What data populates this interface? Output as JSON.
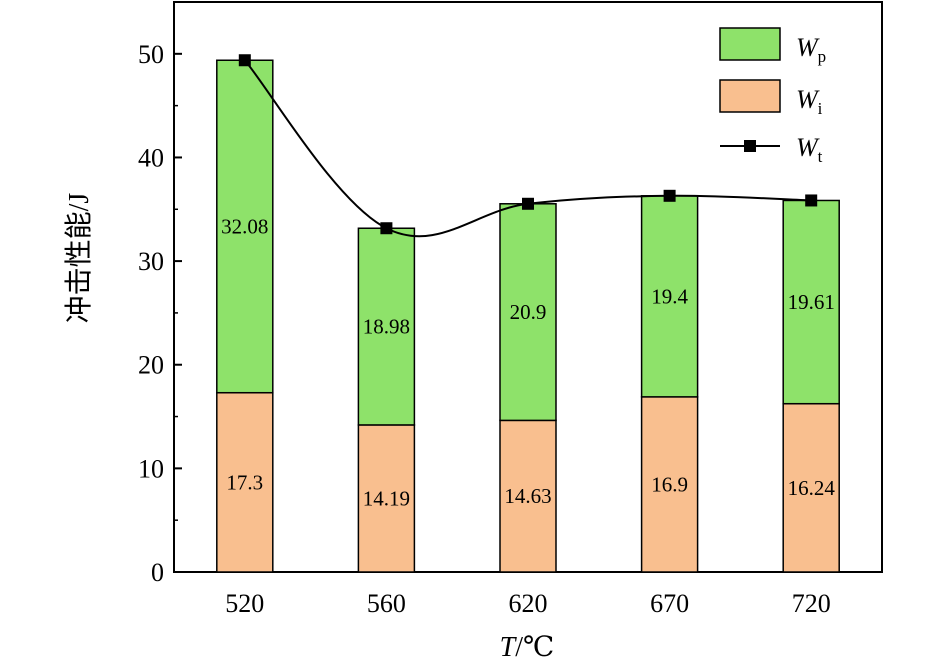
{
  "chart_data": {
    "type": "bar",
    "stacked": true,
    "categories": [
      "520",
      "560",
      "620",
      "670",
      "720"
    ],
    "series": [
      {
        "name": "Wi",
        "legend_main": "W",
        "legend_sub": "i",
        "color": "#f9bf8f",
        "values": [
          17.3,
          14.19,
          14.63,
          16.9,
          16.24
        ]
      },
      {
        "name": "Wp",
        "legend_main": "W",
        "legend_sub": "p",
        "color": "#8ee26a",
        "values": [
          32.08,
          18.98,
          20.9,
          19.4,
          19.61
        ]
      }
    ],
    "line_series": {
      "name": "Wt",
      "legend_main": "W",
      "legend_sub": "t",
      "color": "#000000",
      "values": [
        49.38,
        33.17,
        35.53,
        36.3,
        35.85
      ]
    },
    "xlabel_main": "T",
    "xlabel_unit": "/℃",
    "ylabel": "冲击性能/J",
    "ylim": [
      0,
      55
    ],
    "yticks": [
      0,
      10,
      20,
      30,
      40,
      50
    ],
    "grid": false,
    "legend_position": "top-right"
  }
}
